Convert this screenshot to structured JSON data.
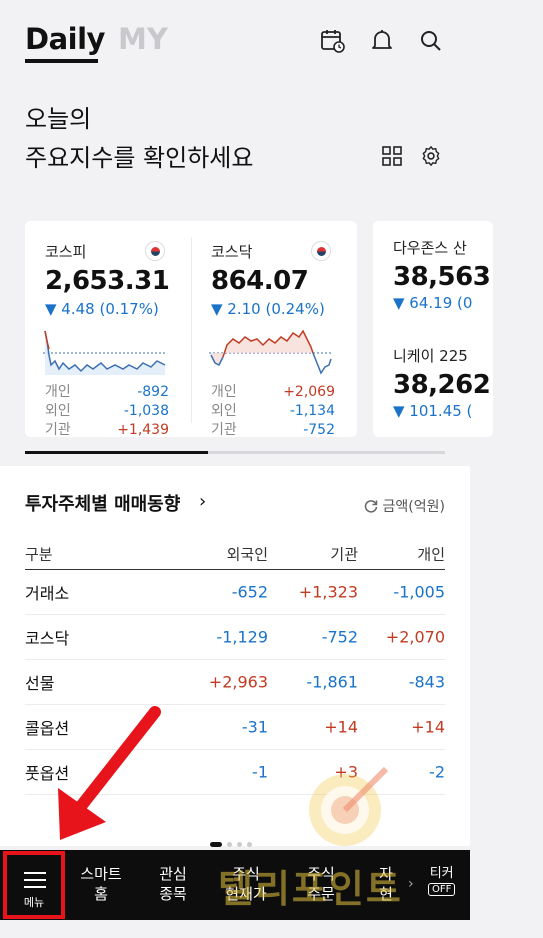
{
  "header": {
    "tab_daily": "Daily",
    "tab_my": "MY",
    "icons": [
      "calendar-check-icon",
      "bell-icon",
      "search-icon"
    ]
  },
  "headline": {
    "line1": "오늘의",
    "line2": "주요지수를 확인하세요"
  },
  "indices": [
    {
      "name": "코스피",
      "value": "2,653.31",
      "change": "▼ 4.48 (0.17%)",
      "flows": [
        {
          "label": "개인",
          "value": "-892",
          "dir": "neg"
        },
        {
          "label": "외인",
          "value": "-1,038",
          "dir": "neg"
        },
        {
          "label": "기관",
          "value": "+1,439",
          "dir": "pos"
        }
      ]
    },
    {
      "name": "코스닥",
      "value": "864.07",
      "change": "▼ 2.10 (0.24%)",
      "flows": [
        {
          "label": "개인",
          "value": "+2,069",
          "dir": "pos"
        },
        {
          "label": "외인",
          "value": "-1,134",
          "dir": "neg"
        },
        {
          "label": "기관",
          "value": "-752",
          "dir": "neg"
        }
      ]
    },
    {
      "name": "다우존스 산",
      "value": "38,563",
      "change": "▼ 64.19 (0"
    },
    {
      "name": "니케이 225",
      "value": "38,262",
      "change": "▼ 101.45 ("
    }
  ],
  "investor": {
    "title": "투자주체별 매매동향",
    "unit": "금액(억원)",
    "columns": [
      "구분",
      "외국인",
      "기관",
      "개인"
    ],
    "rows": [
      {
        "market": "거래소",
        "foreign": "-652",
        "inst": "+1,323",
        "indiv": "-1,005"
      },
      {
        "market": "코스닥",
        "foreign": "-1,129",
        "inst": "-752",
        "indiv": "+2,070"
      },
      {
        "market": "선물",
        "foreign": "+2,963",
        "inst": "-1,861",
        "indiv": "-843"
      },
      {
        "market": "콜옵션",
        "foreign": "-31",
        "inst": "+14",
        "indiv": "+14"
      },
      {
        "market": "풋옵션",
        "foreign": "-1",
        "inst": "+3",
        "indiv": "-2"
      }
    ]
  },
  "bottom_nav": {
    "menu": "메뉴",
    "items": [
      {
        "line1": "스마트",
        "line2": "홈"
      },
      {
        "line1": "관심",
        "line2": "종목"
      },
      {
        "line1": "주식",
        "line2": "현재가"
      },
      {
        "line1": "주식",
        "line2": "주문"
      },
      {
        "line1": "자",
        "line2": "현"
      }
    ],
    "ticker": "티커",
    "ticker_state": "OFF"
  },
  "watermark": "텔리포인트",
  "colors": {
    "up": "#c23b22",
    "down": "#1a73c9",
    "bar": "#0d0d0d",
    "highlight": "#e8141c"
  }
}
